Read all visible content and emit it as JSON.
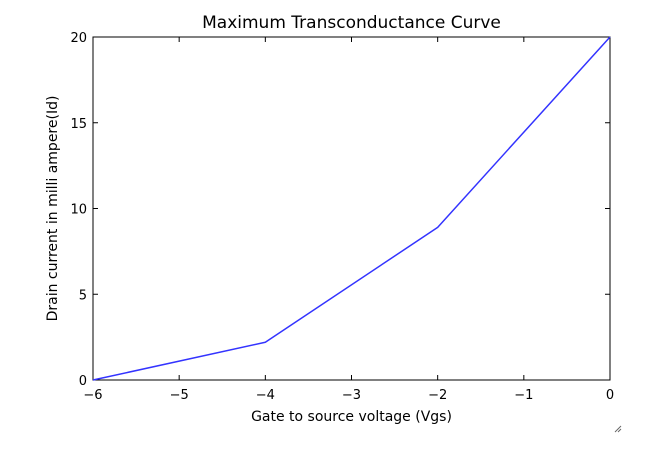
{
  "chart_data": {
    "type": "line",
    "title": "Maximum Transconductance Curve",
    "xlabel": "Gate to source voltage (Vgs)",
    "ylabel": "Drain current in milli ampere(Id)",
    "xlim": [
      -6,
      0
    ],
    "ylim": [
      0,
      20
    ],
    "xticks": [
      -6,
      -5,
      -4,
      -3,
      -2,
      -1,
      0
    ],
    "xtick_labels": [
      "−6",
      "−5",
      "−4",
      "−3",
      "−2",
      "−1",
      "0"
    ],
    "yticks": [
      0,
      5,
      10,
      15,
      20
    ],
    "ytick_labels": [
      "0",
      "5",
      "10",
      "15",
      "20"
    ],
    "grid": false,
    "series": [
      {
        "color": "#3333ff",
        "x": [
          -6,
          -4,
          -2,
          0
        ],
        "y": [
          0,
          2.2,
          8.9,
          20
        ]
      }
    ]
  },
  "window": {
    "icon": "resize-grip-icon"
  }
}
